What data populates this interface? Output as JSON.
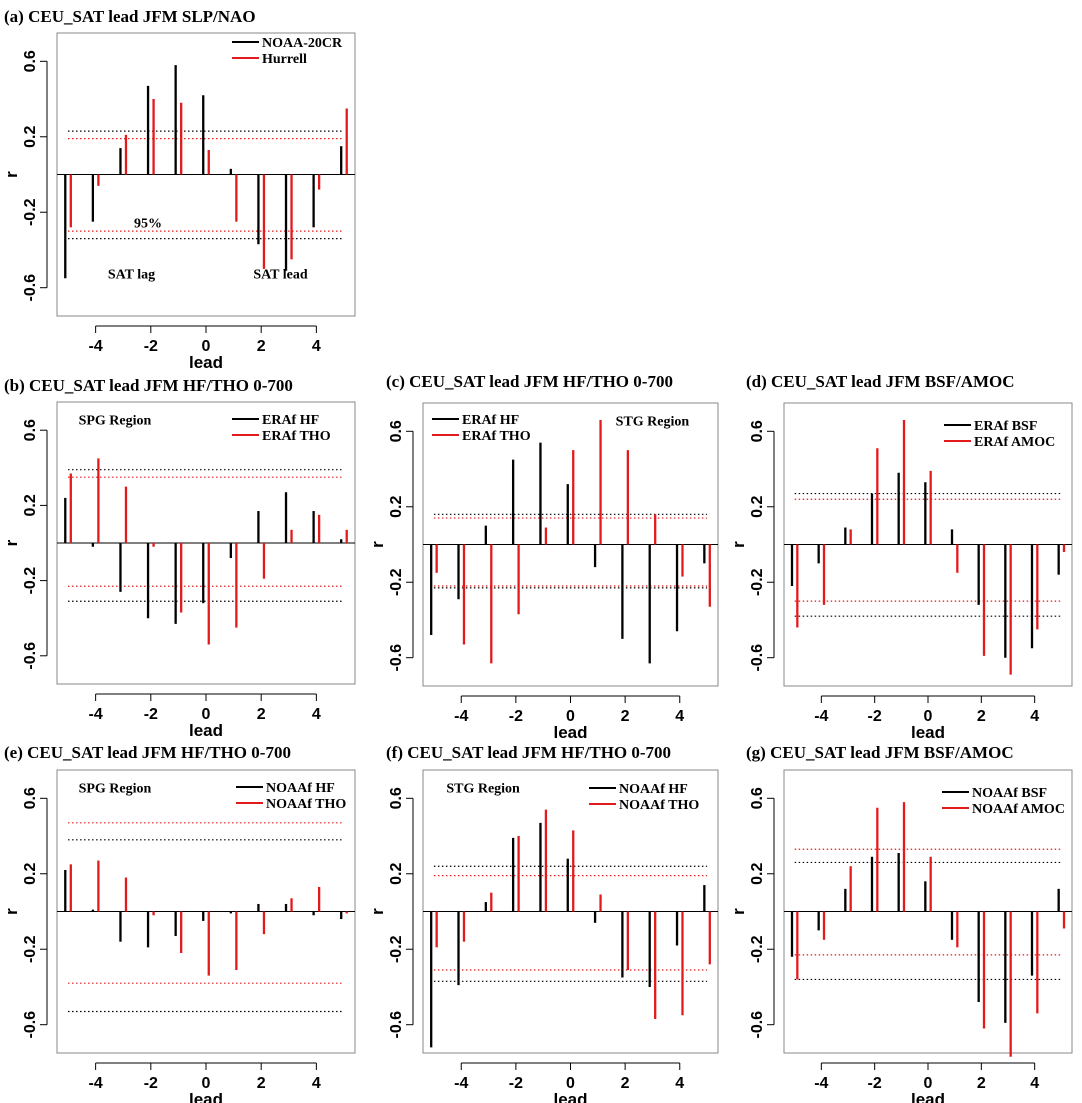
{
  "chart_data": [
    {
      "type": "bar",
      "title": "(a) CEU_SAT lead JFM SLP/NAO",
      "xlabel": "lead",
      "ylabel": "r",
      "xlim": [
        -5.4,
        5.4
      ],
      "ylim": [
        -0.75,
        0.75
      ],
      "xticks": [
        "-4",
        "-2",
        "0",
        "2",
        "4"
      ],
      "yticks": [
        "-0.6",
        "-0.2",
        "0.2",
        "0.6"
      ],
      "x": [
        -5,
        -4,
        -3,
        -2,
        -1,
        0,
        1,
        2,
        3,
        4,
        5
      ],
      "series": [
        {
          "name": "NOAA-20CR",
          "color": "#000000",
          "values": [
            -0.55,
            -0.25,
            0.14,
            0.47,
            0.58,
            0.42,
            0.03,
            -0.37,
            -0.51,
            -0.28,
            0.15
          ]
        },
        {
          "name": "Hurrell",
          "color": "#e31a1c",
          "values": [
            -0.28,
            -0.06,
            0.21,
            0.4,
            0.38,
            0.13,
            -0.25,
            -0.5,
            -0.45,
            -0.08,
            0.35
          ]
        }
      ],
      "thresholds": [
        {
          "color": "#000000",
          "values": [
            0.23,
            -0.34
          ]
        },
        {
          "color": "#e31a1c",
          "values": [
            0.19,
            -0.3
          ]
        }
      ],
      "legend_position": "top-right",
      "annotations": [
        {
          "text": "95%",
          "x": -2.1,
          "y": -0.28
        },
        {
          "text": "SAT lag",
          "x": -2.7,
          "y": -0.55
        },
        {
          "text": "SAT lead",
          "x": 2.7,
          "y": -0.55
        }
      ]
    },
    {
      "type": "bar",
      "title": "(b) CEU_SAT lead JFM HF/THO 0-700",
      "xlabel": "lead",
      "ylabel": "r",
      "xlim": [
        -5.4,
        5.4
      ],
      "ylim": [
        -0.75,
        0.75
      ],
      "xticks": [
        "-4",
        "-2",
        "0",
        "2",
        "4"
      ],
      "yticks": [
        "-0.6",
        "-0.2",
        "0.2",
        "0.6"
      ],
      "x": [
        -5,
        -4,
        -3,
        -2,
        -1,
        0,
        1,
        2,
        3,
        4,
        5
      ],
      "series": [
        {
          "name": "ERAf HF",
          "color": "#000000",
          "values": [
            0.24,
            -0.02,
            -0.26,
            -0.4,
            -0.43,
            -0.32,
            -0.08,
            0.17,
            0.27,
            0.17,
            0.02
          ]
        },
        {
          "name": "ERAf THO",
          "color": "#e31a1c",
          "values": [
            0.37,
            0.45,
            0.3,
            -0.02,
            -0.37,
            -0.54,
            -0.45,
            -0.19,
            0.07,
            0.15,
            0.07
          ]
        }
      ],
      "thresholds": [
        {
          "color": "#000000",
          "values": [
            0.39,
            -0.31
          ]
        },
        {
          "color": "#e31a1c",
          "values": [
            0.35,
            -0.23
          ]
        }
      ],
      "legend_position": "top-right",
      "annotations": [
        {
          "text": "SPG Region",
          "x": -3.3,
          "y": 0.63
        }
      ]
    },
    {
      "type": "bar",
      "title": "(c) CEU_SAT lead JFM HF/THO 0-700",
      "xlabel": "lead",
      "ylabel": "r",
      "xlim": [
        -5.4,
        5.4
      ],
      "ylim": [
        -0.75,
        0.75
      ],
      "xticks": [
        "-4",
        "-2",
        "0",
        "2",
        "4"
      ],
      "yticks": [
        "-0.6",
        "-0.2",
        "0.2",
        "0.6"
      ],
      "x": [
        -5,
        -4,
        -3,
        -2,
        -1,
        0,
        1,
        2,
        3,
        4,
        5
      ],
      "series": [
        {
          "name": "ERAf HF",
          "color": "#000000",
          "values": [
            -0.48,
            -0.29,
            0.1,
            0.45,
            0.54,
            0.32,
            -0.12,
            -0.5,
            -0.63,
            -0.46,
            -0.1
          ]
        },
        {
          "name": "ERAf THO",
          "color": "#e31a1c",
          "values": [
            -0.15,
            -0.53,
            -0.63,
            -0.37,
            0.09,
            0.5,
            0.66,
            0.5,
            0.16,
            -0.17,
            -0.33
          ]
        }
      ],
      "thresholds": [
        {
          "color": "#000000",
          "values": [
            0.16,
            -0.23
          ]
        },
        {
          "color": "#e31a1c",
          "values": [
            0.14,
            -0.22
          ]
        }
      ],
      "legend_position": "top-left",
      "annotations": [
        {
          "text": "STG Region",
          "x": 3.0,
          "y": 0.63
        }
      ]
    },
    {
      "type": "bar",
      "title": "(d) CEU_SAT lead JFM BSF/AMOC",
      "xlabel": "lead",
      "ylabel": "r",
      "xlim": [
        -5.4,
        5.4
      ],
      "ylim": [
        -0.75,
        0.75
      ],
      "xticks": [
        "-4",
        "-2",
        "0",
        "2",
        "4"
      ],
      "yticks": [
        "-0.6",
        "-0.2",
        "0.2",
        "0.6"
      ],
      "x": [
        -5,
        -4,
        -3,
        -2,
        -1,
        0,
        1,
        2,
        3,
        4,
        5
      ],
      "series": [
        {
          "name": "ERAf BSF",
          "color": "#000000",
          "values": [
            -0.22,
            -0.1,
            0.09,
            0.27,
            0.38,
            0.33,
            0.08,
            -0.32,
            -0.6,
            -0.55,
            -0.16
          ]
        },
        {
          "name": "ERAf AMOC",
          "color": "#e31a1c",
          "values": [
            -0.44,
            -0.32,
            0.08,
            0.51,
            0.66,
            0.39,
            -0.15,
            -0.59,
            -0.69,
            -0.45,
            -0.04
          ]
        }
      ],
      "thresholds": [
        {
          "color": "#000000",
          "values": [
            0.27,
            -0.38
          ]
        },
        {
          "color": "#e31a1c",
          "values": [
            0.24,
            -0.3
          ]
        }
      ],
      "legend_position": "top-right",
      "annotations": []
    },
    {
      "type": "bar",
      "title": "(e) CEU_SAT lead JFM HF/THO 0-700",
      "xlabel": "lead",
      "ylabel": "r",
      "xlim": [
        -5.4,
        5.4
      ],
      "ylim": [
        -0.75,
        0.75
      ],
      "xticks": [
        "-4",
        "-2",
        "0",
        "2",
        "4"
      ],
      "yticks": [
        "-0.6",
        "-0.2",
        "0.2",
        "0.6"
      ],
      "x": [
        -5,
        -4,
        -3,
        -2,
        -1,
        0,
        1,
        2,
        3,
        4,
        5
      ],
      "series": [
        {
          "name": "NOAAf HF",
          "color": "#000000",
          "values": [
            0.22,
            0.01,
            -0.16,
            -0.19,
            -0.13,
            -0.05,
            -0.01,
            0.04,
            0.04,
            -0.02,
            -0.04
          ]
        },
        {
          "name": "NOAAf THO",
          "color": "#e31a1c",
          "values": [
            0.25,
            0.27,
            0.18,
            -0.02,
            -0.22,
            -0.34,
            -0.31,
            -0.12,
            0.07,
            0.13,
            -0.01
          ]
        }
      ],
      "thresholds": [
        {
          "color": "#000000",
          "values": [
            0.38,
            -0.53
          ]
        },
        {
          "color": "#e31a1c",
          "values": [
            0.47,
            -0.38
          ]
        }
      ],
      "legend_position": "top-right",
      "annotations": [
        {
          "text": "SPG Region",
          "x": -3.3,
          "y": 0.63
        }
      ]
    },
    {
      "type": "bar",
      "title": "(f) CEU_SAT lead JFM HF/THO 0-700",
      "xlabel": "lead",
      "ylabel": "r",
      "xlim": [
        -5.4,
        5.4
      ],
      "ylim": [
        -0.75,
        0.75
      ],
      "xticks": [
        "-4",
        "-2",
        "0",
        "2",
        "4"
      ],
      "yticks": [
        "-0.6",
        "-0.2",
        "0.2",
        "0.6"
      ],
      "x": [
        -5,
        -4,
        -3,
        -2,
        -1,
        0,
        1,
        2,
        3,
        4,
        5
      ],
      "series": [
        {
          "name": "NOAAf HF",
          "color": "#000000",
          "values": [
            -0.72,
            -0.39,
            0.05,
            0.39,
            0.47,
            0.28,
            -0.06,
            -0.35,
            -0.4,
            -0.18,
            0.14
          ]
        },
        {
          "name": "NOAAf THO",
          "color": "#e31a1c",
          "values": [
            -0.19,
            -0.16,
            0.1,
            0.4,
            0.54,
            0.43,
            0.09,
            -0.31,
            -0.57,
            -0.55,
            -0.28
          ]
        }
      ],
      "thresholds": [
        {
          "color": "#000000",
          "values": [
            0.24,
            -0.37
          ]
        },
        {
          "color": "#e31a1c",
          "values": [
            0.19,
            -0.31
          ]
        }
      ],
      "legend_position": "top-right",
      "annotations": [
        {
          "text": "STG Region",
          "x": -3.2,
          "y": 0.63
        }
      ]
    },
    {
      "type": "bar",
      "title": "(g) CEU_SAT lead JFM BSF/AMOC",
      "xlabel": "lead",
      "ylabel": "r",
      "xlim": [
        -5.4,
        5.4
      ],
      "ylim": [
        -0.75,
        0.75
      ],
      "xticks": [
        "-4",
        "-2",
        "0",
        "2",
        "4"
      ],
      "yticks": [
        "-0.6",
        "-0.2",
        "0.2",
        "0.6"
      ],
      "x": [
        -5,
        -4,
        -3,
        -2,
        -1,
        0,
        1,
        2,
        3,
        4,
        5
      ],
      "series": [
        {
          "name": "NOAAf BSF",
          "color": "#000000",
          "values": [
            -0.24,
            -0.1,
            0.12,
            0.29,
            0.31,
            0.16,
            -0.15,
            -0.48,
            -0.59,
            -0.34,
            0.12
          ]
        },
        {
          "name": "NOAAf AMOC",
          "color": "#e31a1c",
          "values": [
            -0.36,
            -0.15,
            0.24,
            0.55,
            0.58,
            0.29,
            -0.19,
            -0.62,
            -0.77,
            -0.54,
            -0.09
          ]
        }
      ],
      "thresholds": [
        {
          "color": "#000000",
          "values": [
            0.26,
            -0.36
          ]
        },
        {
          "color": "#e31a1c",
          "values": [
            0.33,
            -0.23
          ]
        }
      ],
      "legend_position": "top-right",
      "annotations": []
    }
  ]
}
